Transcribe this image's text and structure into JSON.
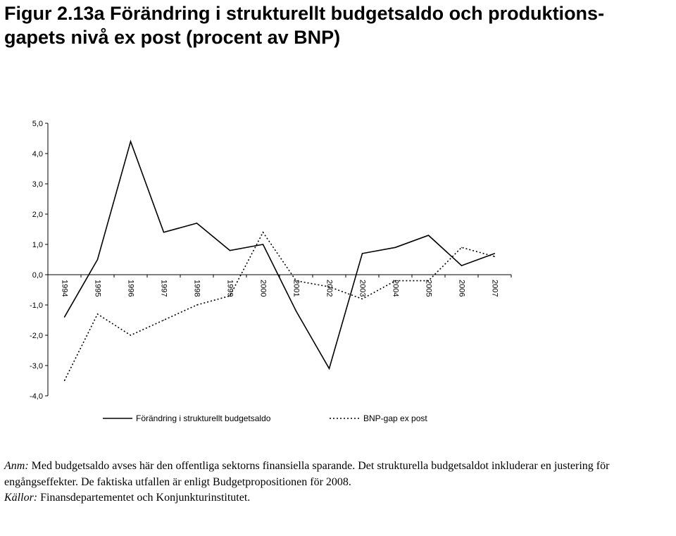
{
  "figure": {
    "title_line1": "Figur 2.13a  Förändring i strukturellt budgetsaldo och produktions-",
    "title_line2": "gapets nivå ex post (procent av BNP)"
  },
  "chart_data": {
    "type": "line",
    "categories": [
      "1994",
      "1995",
      "1996",
      "1997",
      "1998",
      "1999",
      "2000",
      "2001",
      "2002",
      "2003",
      "2004",
      "2005",
      "2006",
      "2007"
    ],
    "series": [
      {
        "name": "Förändring i strukturellt budgetsaldo",
        "style": "solid",
        "color": "#000000",
        "values": [
          -1.4,
          0.5,
          4.4,
          1.4,
          1.7,
          0.8,
          1.0,
          -1.2,
          -3.1,
          0.7,
          0.9,
          1.3,
          0.3,
          0.7
        ]
      },
      {
        "name": "BNP-gap ex post",
        "style": "dotted",
        "color": "#000000",
        "values": [
          -3.5,
          -1.3,
          -2.0,
          -1.5,
          -1.0,
          -0.7,
          1.4,
          -0.2,
          -0.4,
          -0.8,
          -0.2,
          -0.2,
          0.9,
          0.6
        ]
      }
    ],
    "ylim": [
      -4.0,
      5.0
    ],
    "yticks": [
      "5,0",
      "4,0",
      "3,0",
      "2,0",
      "1,0",
      "0,0",
      "-1,0",
      "-2,0",
      "-3,0",
      "-4,0"
    ],
    "ytick_values": [
      5,
      4,
      3,
      2,
      1,
      0,
      -1,
      -2,
      -3,
      -4
    ],
    "grid": false,
    "legend_position": "bottom"
  },
  "notes": {
    "anm_lead": "Anm:",
    "anm_text": " Med budgetsaldo avses här den offentliga sektorns finansiella sparande. Det strukturella budgetsaldot inkluderar en justering för engångseffekter. De faktiska utfallen är enligt Budgetpropositionen för 2008.",
    "source_lead": "Källor:",
    "source_text": " Finansdepartementet och Konjunkturinstitutet."
  }
}
